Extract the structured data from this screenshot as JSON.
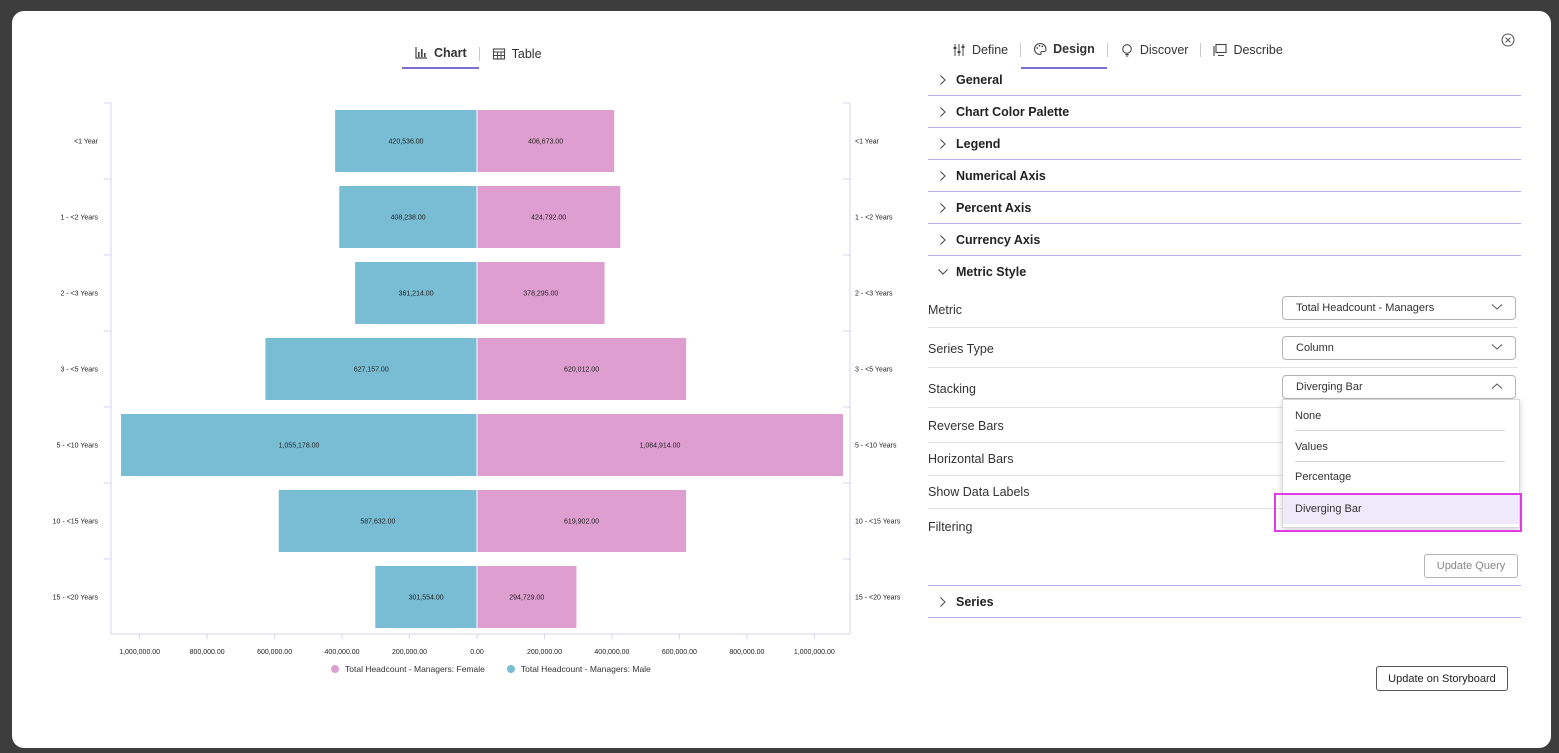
{
  "view_tabs": {
    "chart": "Chart",
    "table": "Table"
  },
  "panel_tabs": [
    {
      "label": "Define",
      "icon": "sliders-icon"
    },
    {
      "label": "Design",
      "icon": "palette-icon"
    },
    {
      "label": "Discover",
      "icon": "lightbulb-icon"
    },
    {
      "label": "Describe",
      "icon": "storyboard-icon"
    }
  ],
  "sections_top": [
    "General",
    "Chart Color Palette",
    "Legend",
    "Numerical Axis",
    "Percent Axis",
    "Currency Axis"
  ],
  "metric_style": {
    "title": "Metric Style",
    "metric_label": "Metric",
    "metric_value": "Total Headcount - Managers",
    "series_type_label": "Series Type",
    "series_type_value": "Column",
    "stacking_label": "Stacking",
    "stacking_value": "Diverging Bar",
    "reverse_bars_label": "Reverse Bars",
    "horizontal_bars_label": "Horizontal Bars",
    "show_data_labels_label": "Show Data Labels",
    "filtering_label": "Filtering",
    "stacking_options": [
      "None",
      "Values",
      "Percentage",
      "Diverging Bar"
    ],
    "update_query": "Update Query"
  },
  "series_section": "Series",
  "update_storyboard": "Update on Storyboard",
  "colors": {
    "female": "#de9fd0",
    "male": "#79bdd4",
    "accent": "#7b6fd6",
    "highlight": "#e13ae3"
  },
  "chart_data": {
    "type": "bar",
    "orientation": "horizontal-diverging",
    "categories": [
      "<1 Year",
      "1 - <2 Years",
      "2 - <3 Years",
      "3 - <5 Years",
      "5 - <10 Years",
      "10 - <15 Years",
      "15 - <20 Years"
    ],
    "series": [
      {
        "name": "Total Headcount - Managers: Female",
        "side": "right",
        "values": [
          406673,
          424792,
          378295,
          620012,
          1084914,
          619902,
          294729
        ],
        "labels": [
          "406,673.00",
          "424,792.00",
          "378,295.00",
          "620,012.00",
          "1,084,914.00",
          "619,902.00",
          "294,729.00"
        ]
      },
      {
        "name": "Total Headcount - Managers: Male",
        "side": "left",
        "values": [
          420536,
          408238,
          361214,
          627157,
          1055178,
          587632,
          301554
        ],
        "labels": [
          "420,536.00",
          "408,238.00",
          "361,214.00",
          "627,157.00",
          "1,055,178.00",
          "587,632.00",
          "301,554.00"
        ]
      }
    ],
    "xlim": [
      -1084914,
      1084914
    ],
    "x_ticks": [
      -1000000,
      -800000,
      -600000,
      -400000,
      -200000,
      0,
      200000,
      400000,
      600000,
      800000,
      1000000
    ],
    "x_tick_labels": [
      "1,000,000.00",
      "800,000.00",
      "600,000.00",
      "400,000.00",
      "200,000.00",
      "0.00",
      "200,000.00",
      "400,000.00",
      "600,000.00",
      "800,000.00",
      "1,000,000.00"
    ],
    "legend_placement": "bottom"
  }
}
